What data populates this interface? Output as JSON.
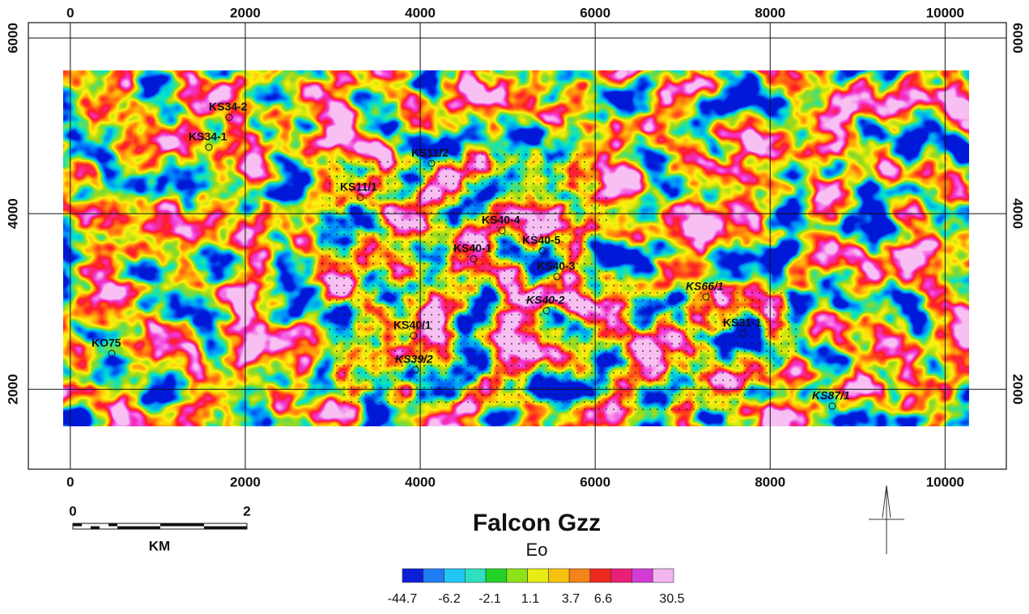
{
  "map": {
    "xlim": [
      -480,
      10700
    ],
    "ylim": [
      1090,
      6175
    ],
    "xticks": [
      0,
      2000,
      4000,
      6000,
      8000,
      10000
    ],
    "yticks": [
      2000,
      4000,
      6000
    ],
    "wells": [
      "KS34-2",
      "KS34-1",
      "KS11/2",
      "KS11/1",
      "KS40-4",
      "KS40-5",
      "KS40-1",
      "KS40-3",
      "KS40-2",
      "KS66/1",
      "KS31-1",
      "KS40/1",
      "KO75",
      "KS39/2",
      "KS87/1"
    ],
    "title": "Falcon Gzz",
    "unit": "Eo",
    "scale_bar": {
      "labels": [
        "0",
        "2"
      ],
      "unit": "KM"
    },
    "colorbar": {
      "ticks": [
        -44.7,
        -6.2,
        -2.1,
        1.1,
        3.7,
        6.6,
        30.5
      ],
      "colors": [
        "#0a1fd6",
        "#1e7cf5",
        "#22c6f5",
        "#2de0c0",
        "#25d22a",
        "#8ee21a",
        "#e6ec14",
        "#f7c20f",
        "#f5821a",
        "#ec2a1e",
        "#ec1f78",
        "#d23cd2",
        "#f4b6f0"
      ]
    }
  }
}
